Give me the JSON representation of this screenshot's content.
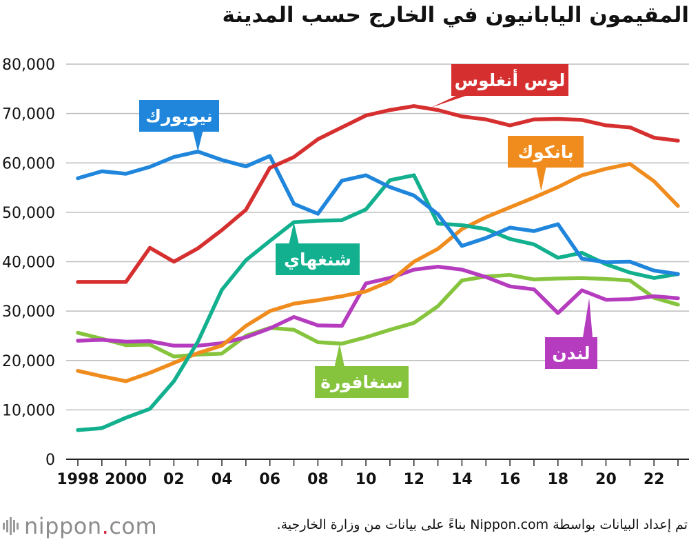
{
  "title": "المقيمون اليابانيون في الخارج حسب المدينة",
  "source": "تم إعداد البيانات بواسطة Nippon.com بناءً على بيانات من وزارة الخارجية.",
  "logo": {
    "name": "nippon",
    "dot": ".",
    "tld": "com"
  },
  "chart_data": {
    "type": "line",
    "x": [
      1998,
      1999,
      2000,
      2001,
      2002,
      2003,
      2004,
      2005,
      2006,
      2007,
      2008,
      2009,
      2010,
      2011,
      2012,
      2013,
      2014,
      2015,
      2016,
      2017,
      2018,
      2019,
      2020,
      2021,
      2022,
      2023
    ],
    "x_tick_labels": [
      "1998",
      "2000",
      "02",
      "04",
      "06",
      "08",
      "10",
      "12",
      "14",
      "16",
      "18",
      "20",
      "22"
    ],
    "x_tick_years": [
      1998,
      2000,
      2002,
      2004,
      2006,
      2008,
      2010,
      2012,
      2014,
      2016,
      2018,
      2020,
      2022
    ],
    "y_tick_labels": [
      "0",
      "10,000",
      "20,000",
      "30,000",
      "40,000",
      "50,000",
      "60,000",
      "70,000",
      "80,000"
    ],
    "ylim": [
      0,
      80000
    ],
    "grid": true,
    "legend": "inline labels",
    "series": [
      {
        "name": "لوس أنغلوس",
        "color": "#d62f2f",
        "values": [
          35900,
          35900,
          35900,
          42800,
          40000,
          42700,
          46400,
          50500,
          59000,
          61200,
          64800,
          67200,
          69600,
          70700,
          71500,
          70700,
          69400,
          68800,
          67600,
          68800,
          68900,
          68700,
          67600,
          67200,
          65100,
          64500
        ]
      },
      {
        "name": "نيويورك",
        "color": "#1f86dc",
        "values": [
          56900,
          58300,
          57800,
          59200,
          61200,
          62300,
          60600,
          59300,
          61400,
          51700,
          49700,
          56400,
          57500,
          55100,
          53400,
          49600,
          43200,
          44800,
          46900,
          46200,
          47600,
          40600,
          39900,
          40000,
          38200,
          37500
        ]
      },
      {
        "name": "بانكوك",
        "color": "#f08c1e",
        "values": [
          17900,
          16800,
          15800,
          17500,
          19500,
          21500,
          23000,
          27000,
          30000,
          31500,
          32200,
          33000,
          34000,
          36000,
          40000,
          42600,
          46600,
          49000,
          51000,
          53000,
          55100,
          57500,
          58800,
          59800,
          56300,
          51300
        ]
      },
      {
        "name": "شنغهاي",
        "color": "#12b08e",
        "values": [
          5900,
          6300,
          8400,
          10200,
          15800,
          23800,
          34300,
          40300,
          44200,
          48000,
          48300,
          48400,
          50600,
          56500,
          57500,
          47700,
          47400,
          46600,
          44600,
          43500,
          40800,
          41800,
          39500,
          37800,
          36700,
          37500
        ]
      },
      {
        "name": "لندن",
        "color": "#b53cbe",
        "values": [
          24000,
          24200,
          23800,
          23900,
          23000,
          23000,
          23500,
          24700,
          26500,
          28800,
          27100,
          27000,
          35600,
          36700,
          38400,
          39000,
          38400,
          36900,
          35000,
          34400,
          29600,
          34200,
          32300,
          32400,
          33000,
          32600
        ]
      },
      {
        "name": "سنغافورة",
        "color": "#86c43e",
        "values": [
          25600,
          24400,
          23100,
          23200,
          20800,
          21200,
          21400,
          25000,
          26600,
          26200,
          23700,
          23400,
          24700,
          26200,
          27600,
          31000,
          36200,
          37000,
          37300,
          36400,
          36600,
          36700,
          36500,
          36200,
          32700,
          31300
        ]
      }
    ],
    "labels": [
      {
        "text": "لوس أنغلوس",
        "color": "#d62f2f",
        "pointer": [
          2012.7,
          71200
        ]
      },
      {
        "text": "نيويورك",
        "color": "#1f86dc",
        "pointer": [
          2003,
          62300
        ]
      },
      {
        "text": "بانكوك",
        "color": "#f08c1e",
        "pointer": [
          2017.3,
          54300
        ]
      },
      {
        "text": "شنغهاي",
        "color": "#12b08e",
        "pointer": [
          2007,
          48000
        ]
      },
      {
        "text": "لندن",
        "color": "#b53cbe",
        "pointer": [
          2019.3,
          32600
        ]
      },
      {
        "text": "سنغافورة",
        "color": "#86c43e",
        "pointer": [
          2008.9,
          23400
        ]
      }
    ]
  }
}
